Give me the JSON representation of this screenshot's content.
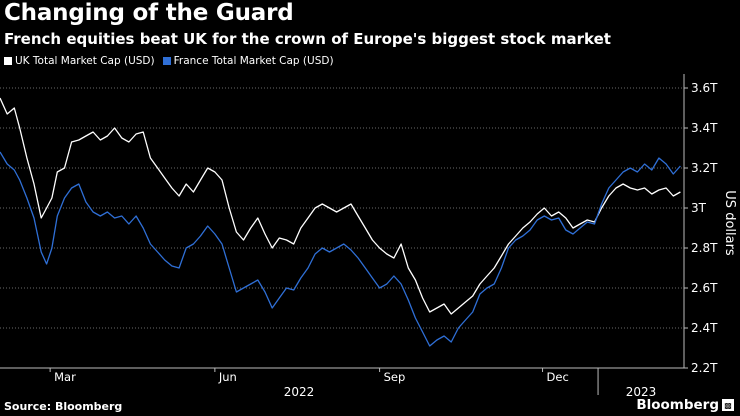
{
  "header": {
    "title": "Changing of the Guard",
    "subtitle": "French equities beat UK for the crown of Europe's biggest stock market"
  },
  "footer": {
    "source": "Source: Bloomberg",
    "brand": "Bloomberg"
  },
  "colors": {
    "background": "#000000",
    "uk_series": "#ffffff",
    "france_series": "#2f6fd6",
    "grid": "#6a6a6a"
  },
  "chart_data": {
    "type": "line",
    "title": "Changing of the Guard",
    "subtitle": "French equities beat UK for the crown of Europe's biggest stock market",
    "ylabel": "US dollars",
    "yaxis_position": "right",
    "ylim": [
      2.2,
      3.65
    ],
    "yticks": [
      2.2,
      2.4,
      2.6,
      2.8,
      3.0,
      3.2,
      3.4,
      3.6
    ],
    "ytick_labels": [
      "2.2T",
      "2.4T",
      "2.6T",
      "2.8T",
      "3T",
      "3.2T",
      "3.4T",
      "3.6T"
    ],
    "xlim": [
      "2022-02-01",
      "2023-02-18"
    ],
    "xticks": [
      {
        "date": "2022-03-01",
        "label": "Mar"
      },
      {
        "date": "2022-06-01",
        "label": "Jun"
      },
      {
        "date": "2022-09-01",
        "label": "Sep"
      },
      {
        "date": "2022-12-01",
        "label": "Dec"
      }
    ],
    "year_labels": [
      {
        "label": "2022",
        "from": "2022-02-01",
        "to": "2023-01-01"
      },
      {
        "label": "2023",
        "from": "2023-01-01",
        "to": "2023-02-18"
      }
    ],
    "grid": true,
    "legend_position": "top-left",
    "series": [
      {
        "name": "UK Total Market Cap (USD)",
        "color": "#ffffff",
        "points": [
          [
            "2022-02-01",
            3.55
          ],
          [
            "2022-02-05",
            3.47
          ],
          [
            "2022-02-09",
            3.5
          ],
          [
            "2022-02-12",
            3.4
          ],
          [
            "2022-02-16",
            3.25
          ],
          [
            "2022-02-20",
            3.12
          ],
          [
            "2022-02-24",
            2.95
          ],
          [
            "2022-02-27",
            3.0
          ],
          [
            "2022-03-02",
            3.05
          ],
          [
            "2022-03-05",
            3.18
          ],
          [
            "2022-03-09",
            3.2
          ],
          [
            "2022-03-13",
            3.33
          ],
          [
            "2022-03-17",
            3.34
          ],
          [
            "2022-03-21",
            3.36
          ],
          [
            "2022-03-25",
            3.38
          ],
          [
            "2022-03-29",
            3.34
          ],
          [
            "2022-04-02",
            3.36
          ],
          [
            "2022-04-06",
            3.4
          ],
          [
            "2022-04-10",
            3.35
          ],
          [
            "2022-04-14",
            3.33
          ],
          [
            "2022-04-18",
            3.37
          ],
          [
            "2022-04-22",
            3.38
          ],
          [
            "2022-04-26",
            3.25
          ],
          [
            "2022-04-30",
            3.2
          ],
          [
            "2022-05-04",
            3.15
          ],
          [
            "2022-05-08",
            3.1
          ],
          [
            "2022-05-12",
            3.06
          ],
          [
            "2022-05-16",
            3.12
          ],
          [
            "2022-05-20",
            3.08
          ],
          [
            "2022-05-24",
            3.14
          ],
          [
            "2022-05-28",
            3.2
          ],
          [
            "2022-06-01",
            3.18
          ],
          [
            "2022-06-05",
            3.14
          ],
          [
            "2022-06-09",
            3.0
          ],
          [
            "2022-06-13",
            2.88
          ],
          [
            "2022-06-17",
            2.84
          ],
          [
            "2022-06-21",
            2.9
          ],
          [
            "2022-06-25",
            2.95
          ],
          [
            "2022-06-29",
            2.87
          ],
          [
            "2022-07-03",
            2.8
          ],
          [
            "2022-07-07",
            2.85
          ],
          [
            "2022-07-11",
            2.84
          ],
          [
            "2022-07-15",
            2.82
          ],
          [
            "2022-07-19",
            2.9
          ],
          [
            "2022-07-23",
            2.95
          ],
          [
            "2022-07-27",
            3.0
          ],
          [
            "2022-07-31",
            3.02
          ],
          [
            "2022-08-04",
            3.0
          ],
          [
            "2022-08-08",
            2.98
          ],
          [
            "2022-08-12",
            3.0
          ],
          [
            "2022-08-16",
            3.02
          ],
          [
            "2022-08-20",
            2.96
          ],
          [
            "2022-08-24",
            2.9
          ],
          [
            "2022-08-28",
            2.84
          ],
          [
            "2022-09-01",
            2.8
          ],
          [
            "2022-09-05",
            2.77
          ],
          [
            "2022-09-09",
            2.75
          ],
          [
            "2022-09-13",
            2.82
          ],
          [
            "2022-09-17",
            2.7
          ],
          [
            "2022-09-21",
            2.64
          ],
          [
            "2022-09-25",
            2.55
          ],
          [
            "2022-09-29",
            2.48
          ],
          [
            "2022-10-03",
            2.5
          ],
          [
            "2022-10-07",
            2.52
          ],
          [
            "2022-10-11",
            2.47
          ],
          [
            "2022-10-15",
            2.5
          ],
          [
            "2022-10-19",
            2.53
          ],
          [
            "2022-10-23",
            2.56
          ],
          [
            "2022-10-27",
            2.62
          ],
          [
            "2022-10-31",
            2.66
          ],
          [
            "2022-11-04",
            2.7
          ],
          [
            "2022-11-08",
            2.76
          ],
          [
            "2022-11-12",
            2.82
          ],
          [
            "2022-11-16",
            2.86
          ],
          [
            "2022-11-20",
            2.9
          ],
          [
            "2022-11-24",
            2.93
          ],
          [
            "2022-11-28",
            2.97
          ],
          [
            "2022-12-02",
            3.0
          ],
          [
            "2022-12-06",
            2.96
          ],
          [
            "2022-12-10",
            2.98
          ],
          [
            "2022-12-14",
            2.95
          ],
          [
            "2022-12-18",
            2.9
          ],
          [
            "2022-12-22",
            2.92
          ],
          [
            "2022-12-26",
            2.94
          ],
          [
            "2022-12-30",
            2.93
          ],
          [
            "2023-01-03",
            3.0
          ],
          [
            "2023-01-07",
            3.06
          ],
          [
            "2023-01-11",
            3.1
          ],
          [
            "2023-01-15",
            3.12
          ],
          [
            "2023-01-19",
            3.1
          ],
          [
            "2023-01-23",
            3.09
          ],
          [
            "2023-01-27",
            3.1
          ],
          [
            "2023-01-31",
            3.07
          ],
          [
            "2023-02-04",
            3.09
          ],
          [
            "2023-02-08",
            3.1
          ],
          [
            "2023-02-12",
            3.06
          ],
          [
            "2023-02-16",
            3.08
          ]
        ]
      },
      {
        "name": "France Total Market Cap (USD)",
        "color": "#2f6fd6",
        "points": [
          [
            "2022-02-01",
            3.28
          ],
          [
            "2022-02-05",
            3.22
          ],
          [
            "2022-02-09",
            3.19
          ],
          [
            "2022-02-12",
            3.14
          ],
          [
            "2022-02-16",
            3.05
          ],
          [
            "2022-02-20",
            2.95
          ],
          [
            "2022-02-24",
            2.78
          ],
          [
            "2022-02-27",
            2.72
          ],
          [
            "2022-03-02",
            2.8
          ],
          [
            "2022-03-05",
            2.96
          ],
          [
            "2022-03-09",
            3.05
          ],
          [
            "2022-03-13",
            3.1
          ],
          [
            "2022-03-17",
            3.12
          ],
          [
            "2022-03-21",
            3.03
          ],
          [
            "2022-03-25",
            2.98
          ],
          [
            "2022-03-29",
            2.96
          ],
          [
            "2022-04-02",
            2.98
          ],
          [
            "2022-04-06",
            2.95
          ],
          [
            "2022-04-10",
            2.96
          ],
          [
            "2022-04-14",
            2.92
          ],
          [
            "2022-04-18",
            2.96
          ],
          [
            "2022-04-22",
            2.9
          ],
          [
            "2022-04-26",
            2.82
          ],
          [
            "2022-04-30",
            2.78
          ],
          [
            "2022-05-04",
            2.74
          ],
          [
            "2022-05-08",
            2.71
          ],
          [
            "2022-05-12",
            2.7
          ],
          [
            "2022-05-16",
            2.8
          ],
          [
            "2022-05-20",
            2.82
          ],
          [
            "2022-05-24",
            2.86
          ],
          [
            "2022-05-28",
            2.91
          ],
          [
            "2022-06-01",
            2.87
          ],
          [
            "2022-06-05",
            2.82
          ],
          [
            "2022-06-09",
            2.7
          ],
          [
            "2022-06-13",
            2.58
          ],
          [
            "2022-06-17",
            2.6
          ],
          [
            "2022-06-21",
            2.62
          ],
          [
            "2022-06-25",
            2.64
          ],
          [
            "2022-06-29",
            2.58
          ],
          [
            "2022-07-03",
            2.5
          ],
          [
            "2022-07-07",
            2.55
          ],
          [
            "2022-07-11",
            2.6
          ],
          [
            "2022-07-15",
            2.59
          ],
          [
            "2022-07-19",
            2.65
          ],
          [
            "2022-07-23",
            2.7
          ],
          [
            "2022-07-27",
            2.77
          ],
          [
            "2022-07-31",
            2.8
          ],
          [
            "2022-08-04",
            2.78
          ],
          [
            "2022-08-08",
            2.8
          ],
          [
            "2022-08-12",
            2.82
          ],
          [
            "2022-08-16",
            2.79
          ],
          [
            "2022-08-20",
            2.75
          ],
          [
            "2022-08-24",
            2.7
          ],
          [
            "2022-08-28",
            2.65
          ],
          [
            "2022-09-01",
            2.6
          ],
          [
            "2022-09-05",
            2.62
          ],
          [
            "2022-09-09",
            2.66
          ],
          [
            "2022-09-13",
            2.62
          ],
          [
            "2022-09-17",
            2.54
          ],
          [
            "2022-09-21",
            2.45
          ],
          [
            "2022-09-25",
            2.38
          ],
          [
            "2022-09-29",
            2.31
          ],
          [
            "2022-10-03",
            2.34
          ],
          [
            "2022-10-07",
            2.36
          ],
          [
            "2022-10-11",
            2.33
          ],
          [
            "2022-10-15",
            2.4
          ],
          [
            "2022-10-19",
            2.44
          ],
          [
            "2022-10-23",
            2.48
          ],
          [
            "2022-10-27",
            2.57
          ],
          [
            "2022-10-31",
            2.6
          ],
          [
            "2022-11-04",
            2.62
          ],
          [
            "2022-11-08",
            2.7
          ],
          [
            "2022-11-12",
            2.8
          ],
          [
            "2022-11-16",
            2.84
          ],
          [
            "2022-11-20",
            2.86
          ],
          [
            "2022-11-24",
            2.89
          ],
          [
            "2022-11-28",
            2.94
          ],
          [
            "2022-12-02",
            2.96
          ],
          [
            "2022-12-06",
            2.94
          ],
          [
            "2022-12-10",
            2.95
          ],
          [
            "2022-12-14",
            2.89
          ],
          [
            "2022-12-18",
            2.87
          ],
          [
            "2022-12-22",
            2.9
          ],
          [
            "2022-12-26",
            2.93
          ],
          [
            "2022-12-30",
            2.92
          ],
          [
            "2023-01-03",
            3.02
          ],
          [
            "2023-01-07",
            3.1
          ],
          [
            "2023-01-11",
            3.14
          ],
          [
            "2023-01-15",
            3.18
          ],
          [
            "2023-01-19",
            3.2
          ],
          [
            "2023-01-23",
            3.18
          ],
          [
            "2023-01-27",
            3.22
          ],
          [
            "2023-01-31",
            3.19
          ],
          [
            "2023-02-04",
            3.25
          ],
          [
            "2023-02-08",
            3.22
          ],
          [
            "2023-02-12",
            3.17
          ],
          [
            "2023-02-16",
            3.21
          ]
        ]
      }
    ]
  }
}
